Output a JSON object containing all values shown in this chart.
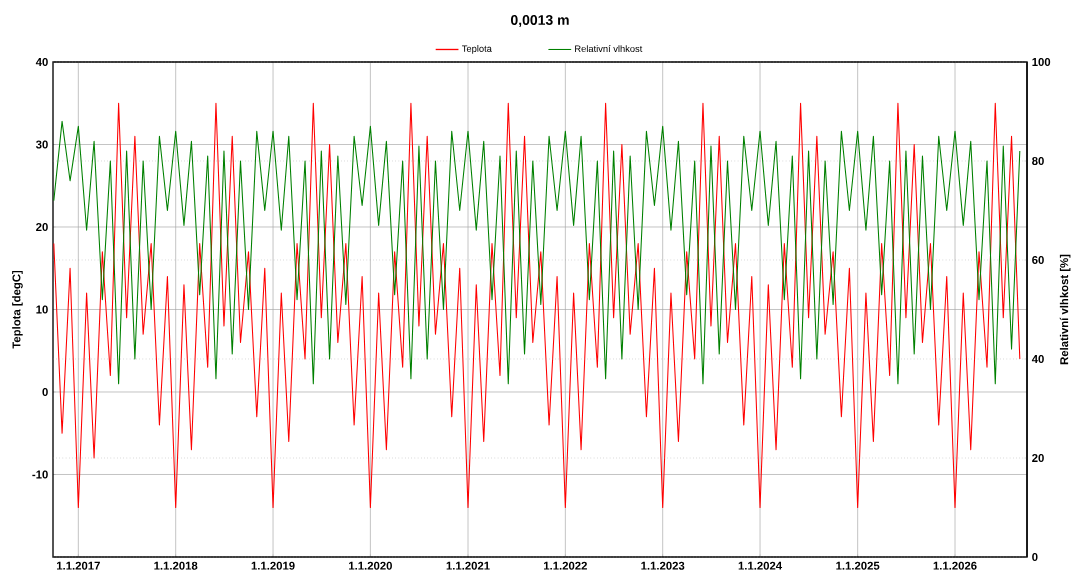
{
  "chart_data": {
    "type": "line",
    "title": "0,0013 m",
    "ylabel": "Teplota [degC]",
    "y2label": "Relativní vlhkost [%]",
    "x": [
      "2016-10-01",
      "2016-11-01",
      "2016-12-01",
      "2017-01-01",
      "2017-02-01",
      "2017-03-01",
      "2017-04-01",
      "2017-05-01",
      "2017-06-01",
      "2017-07-01",
      "2017-08-01",
      "2017-09-01",
      "2017-10-01",
      "2017-11-01",
      "2017-12-01",
      "2018-01-01",
      "2018-02-01",
      "2018-03-01",
      "2018-04-01",
      "2018-05-01",
      "2018-06-01",
      "2018-07-01",
      "2018-08-01",
      "2018-09-01",
      "2018-10-01",
      "2018-11-01",
      "2018-12-01",
      "2019-01-01",
      "2019-02-01",
      "2019-03-01",
      "2019-04-01",
      "2019-05-01",
      "2019-06-01",
      "2019-07-01",
      "2019-08-01",
      "2019-09-01",
      "2019-10-01",
      "2019-11-01",
      "2019-12-01",
      "2020-01-01",
      "2020-02-01",
      "2020-03-01",
      "2020-04-01",
      "2020-05-01",
      "2020-06-01",
      "2020-07-01",
      "2020-08-01",
      "2020-09-01",
      "2020-10-01",
      "2020-11-01",
      "2020-12-01",
      "2021-01-01",
      "2021-02-01",
      "2021-03-01",
      "2021-04-01",
      "2021-05-01",
      "2021-06-01",
      "2021-07-01",
      "2021-08-01",
      "2021-09-01",
      "2021-10-01",
      "2021-11-01",
      "2021-12-01",
      "2022-01-01",
      "2022-02-01",
      "2022-03-01",
      "2022-04-01",
      "2022-05-01",
      "2022-06-01",
      "2022-07-01",
      "2022-08-01",
      "2022-09-01",
      "2022-10-01",
      "2022-11-01",
      "2022-12-01",
      "2023-01-01",
      "2023-02-01",
      "2023-03-01",
      "2023-04-01",
      "2023-05-01",
      "2023-06-01",
      "2023-07-01",
      "2023-08-01",
      "2023-09-01",
      "2023-10-01",
      "2023-11-01",
      "2023-12-01",
      "2024-01-01",
      "2024-02-01",
      "2024-03-01",
      "2024-04-01",
      "2024-05-01",
      "2024-06-01",
      "2024-07-01",
      "2024-08-01",
      "2024-09-01",
      "2024-10-01",
      "2024-11-01",
      "2024-12-01",
      "2025-01-01",
      "2025-02-01",
      "2025-03-01",
      "2025-04-01",
      "2025-05-01",
      "2025-06-01",
      "2025-07-01",
      "2025-08-01",
      "2025-09-01",
      "2025-10-01",
      "2025-11-01",
      "2025-12-01",
      "2026-01-01",
      "2026-02-01",
      "2026-03-01",
      "2026-04-01",
      "2026-05-01",
      "2026-06-01",
      "2026-07-01",
      "2026-08-01",
      "2026-09-01"
    ],
    "series": [
      {
        "name": "Teplota",
        "color": "#ff0000",
        "values": [
          18,
          -5,
          15,
          -14,
          12,
          -8,
          17,
          2,
          35,
          9,
          31,
          7,
          18,
          -4,
          14,
          -14,
          13,
          -7,
          18,
          3,
          35,
          8,
          31,
          6,
          17,
          -3,
          15,
          -14,
          12,
          -6,
          18,
          4,
          35,
          9,
          30,
          6,
          18,
          -4,
          14,
          -14,
          12,
          -7,
          17,
          3,
          35,
          8,
          31,
          7,
          18,
          -3,
          15,
          -14,
          13,
          -6,
          18,
          2,
          35,
          9,
          31,
          6,
          17,
          -4,
          14,
          -14,
          12,
          -7,
          18,
          3,
          35,
          9,
          30,
          7,
          18,
          -3,
          15,
          -14,
          12,
          -6,
          17,
          4,
          35,
          8,
          31,
          6,
          18,
          -4,
          14,
          -14,
          13,
          -7,
          18,
          3,
          35,
          9,
          31,
          7,
          17,
          -3,
          15,
          -14,
          12,
          -6,
          18,
          2,
          35,
          9,
          30,
          6,
          18,
          -4,
          14,
          -14,
          12,
          -7,
          17,
          3,
          35,
          9,
          31,
          4
        ]
      },
      {
        "name": "Relativní vlhkost",
        "color": "#008000",
        "axis": "y2",
        "values": [
          72,
          88,
          76,
          87,
          66,
          84,
          52,
          80,
          35,
          82,
          40,
          80,
          50,
          85,
          70,
          86,
          67,
          84,
          53,
          81,
          36,
          82,
          41,
          80,
          50,
          86,
          70,
          86,
          66,
          85,
          52,
          80,
          35,
          82,
          40,
          81,
          51,
          85,
          71,
          87,
          67,
          84,
          53,
          80,
          36,
          83,
          40,
          80,
          50,
          86,
          70,
          86,
          66,
          84,
          52,
          81,
          35,
          82,
          41,
          80,
          51,
          85,
          70,
          86,
          67,
          85,
          52,
          80,
          36,
          82,
          40,
          81,
          50,
          86,
          71,
          87,
          66,
          84,
          53,
          80,
          35,
          83,
          41,
          80,
          50,
          85,
          70,
          86,
          67,
          84,
          52,
          81,
          36,
          82,
          40,
          80,
          51,
          86,
          70,
          86,
          66,
          85,
          53,
          80,
          35,
          82,
          41,
          81,
          50,
          85,
          70,
          86,
          67,
          84,
          52,
          80,
          35,
          83,
          42,
          82
        ]
      }
    ],
    "xlim": [
      "2016-09-28",
      "2026-09-28"
    ],
    "xticks": [
      {
        "value": "2017-01-01",
        "label": "1.1.2017"
      },
      {
        "value": "2018-01-01",
        "label": "1.1.2018"
      },
      {
        "value": "2019-01-01",
        "label": "1.1.2019"
      },
      {
        "value": "2020-01-01",
        "label": "1.1.2020"
      },
      {
        "value": "2021-01-01",
        "label": "1.1.2021"
      },
      {
        "value": "2022-01-01",
        "label": "1.1.2022"
      },
      {
        "value": "2023-01-01",
        "label": "1.1.2023"
      },
      {
        "value": "2024-01-01",
        "label": "1.1.2024"
      },
      {
        "value": "2025-01-01",
        "label": "1.1.2025"
      },
      {
        "value": "2026-01-01",
        "label": "1.1.2026"
      }
    ],
    "ylim": [
      -20,
      40
    ],
    "yticks": [
      -10,
      0,
      10,
      20,
      30,
      40
    ],
    "y2lim": [
      0,
      100
    ],
    "y2ticks": [
      0,
      20,
      40,
      60,
      80,
      100
    ],
    "grid": true,
    "legend": "top"
  }
}
